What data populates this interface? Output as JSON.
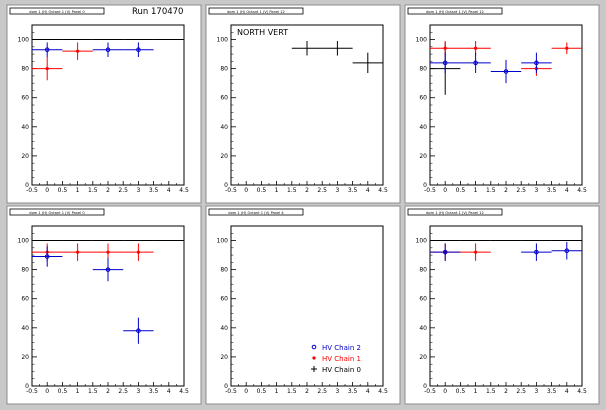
{
  "run_label": "Run 170470",
  "colors": {
    "chain0": "#000000",
    "chain1": "#ff0000",
    "chain2": "#0000cc"
  },
  "legend": [
    {
      "key": "chain2",
      "label": "HV Chain 2",
      "marker": "circle"
    },
    {
      "key": "chain1",
      "label": "HV Chain 1",
      "marker": "star"
    },
    {
      "key": "chain0",
      "label": "HV Chain 0",
      "marker": "cross"
    }
  ],
  "chart_data": [
    {
      "type": "scatter",
      "title": "dom 1 (H) Octant 1 (V) Panel 0",
      "xlim": [
        -0.5,
        4.5
      ],
      "ylim": [
        0,
        110
      ],
      "x_ticks": [
        "-0.5",
        "0",
        "0.5",
        "1",
        "1.5",
        "2",
        "2.5",
        "3",
        "3.5",
        "4",
        "4.5"
      ],
      "y_ticks": [
        "0",
        "20",
        "40",
        "60",
        "80",
        "100"
      ],
      "series": [
        {
          "key": "chain0",
          "points": [
            {
              "x": 0,
              "y": 100,
              "ex": 0.5,
              "ey": 0
            },
            {
              "x": 1,
              "y": 100,
              "ex": 0.5,
              "ey": 0
            },
            {
              "x": 2,
              "y": 100,
              "ex": 0.5,
              "ey": 0
            },
            {
              "x": 3,
              "y": 100,
              "ex": 0.5,
              "ey": 0
            },
            {
              "x": 4,
              "y": 100,
              "ex": 0.5,
              "ey": 0
            }
          ]
        },
        {
          "key": "chain1",
          "points": [
            {
              "x": 0,
              "y": 80,
              "ex": 0.5,
              "ey": 8
            },
            {
              "x": 1,
              "y": 92,
              "ex": 0.5,
              "ey": 6
            }
          ]
        },
        {
          "key": "chain2",
          "points": [
            {
              "x": 0,
              "y": 93,
              "ex": 0.5,
              "ey": 5
            },
            {
              "x": 2,
              "y": 93,
              "ex": 0.5,
              "ey": 5
            },
            {
              "x": 3,
              "y": 93,
              "ex": 0.5,
              "ey": 5
            }
          ]
        }
      ]
    },
    {
      "type": "scatter",
      "title": "dom 1 (H) Octant 1 (V) Panel 12",
      "annotation": "NORTH VERT",
      "xlim": [
        -0.5,
        4.5
      ],
      "ylim": [
        0,
        110
      ],
      "x_ticks": [
        "-0.5",
        "0",
        "0.5",
        "1",
        "1.5",
        "2",
        "2.5",
        "3",
        "3.5",
        "4",
        "4.5"
      ],
      "y_ticks": [
        "0",
        "20",
        "40",
        "60",
        "80",
        "100"
      ],
      "series": [
        {
          "key": "chain0",
          "points": [
            {
              "x": 2,
              "y": 94,
              "ex": 0.5,
              "ey": 5
            },
            {
              "x": 3,
              "y": 94,
              "ex": 0.5,
              "ey": 5
            },
            {
              "x": 4,
              "y": 84,
              "ex": 0.5,
              "ey": 7
            }
          ]
        }
      ]
    },
    {
      "type": "scatter",
      "title": "dom 1 (H) Octant 1 (V) Panel 12",
      "xlim": [
        -0.5,
        4.5
      ],
      "ylim": [
        0,
        110
      ],
      "x_ticks": [
        "-0.5",
        "0",
        "0.5",
        "1",
        "1.5",
        "2",
        "2.5",
        "3",
        "3.5",
        "4",
        "4.5"
      ],
      "y_ticks": [
        "0",
        "20",
        "40",
        "60",
        "80",
        "100"
      ],
      "series": [
        {
          "key": "chain0",
          "points": [
            {
              "x": 0,
              "y": 80,
              "ex": 0.5,
              "ey": 18
            }
          ]
        },
        {
          "key": "chain1",
          "points": [
            {
              "x": 0,
              "y": 94,
              "ex": 0.5,
              "ey": 5
            },
            {
              "x": 1,
              "y": 94,
              "ex": 0.5,
              "ey": 5
            },
            {
              "x": 3,
              "y": 80,
              "ex": 0.5,
              "ey": 5
            },
            {
              "x": 4,
              "y": 94,
              "ex": 0.5,
              "ey": 4
            }
          ]
        },
        {
          "key": "chain2",
          "points": [
            {
              "x": 0,
              "y": 84,
              "ex": 0.5,
              "ey": 7
            },
            {
              "x": 1,
              "y": 84,
              "ex": 0.5,
              "ey": 7
            },
            {
              "x": 2,
              "y": 78,
              "ex": 0.5,
              "ey": 8
            },
            {
              "x": 3,
              "y": 84,
              "ex": 0.5,
              "ey": 7
            }
          ]
        }
      ]
    },
    {
      "type": "scatter",
      "title": "dom 1 (H) Octant 1 (V) Panel 0",
      "xlim": [
        -0.5,
        4.5
      ],
      "ylim": [
        0,
        110
      ],
      "x_ticks": [
        "-0.5",
        "0",
        "0.5",
        "1",
        "1.5",
        "2",
        "2.5",
        "3",
        "3.5",
        "4",
        "4.5"
      ],
      "y_ticks": [
        "0",
        "20",
        "40",
        "60",
        "80",
        "100"
      ],
      "series": [
        {
          "key": "chain0",
          "points": [
            {
              "x": 0,
              "y": 100,
              "ex": 0.5,
              "ey": 0
            },
            {
              "x": 1,
              "y": 100,
              "ex": 0.5,
              "ey": 0
            },
            {
              "x": 2,
              "y": 100,
              "ex": 0.5,
              "ey": 0
            },
            {
              "x": 3,
              "y": 100,
              "ex": 0.5,
              "ey": 0
            },
            {
              "x": 4,
              "y": 100,
              "ex": 0.5,
              "ey": 0
            }
          ]
        },
        {
          "key": "chain1",
          "points": [
            {
              "x": 0,
              "y": 92,
              "ex": 0.5,
              "ey": 6
            },
            {
              "x": 1,
              "y": 92,
              "ex": 0.5,
              "ey": 6
            },
            {
              "x": 2,
              "y": 92,
              "ex": 0.5,
              "ey": 6
            },
            {
              "x": 3,
              "y": 92,
              "ex": 0.5,
              "ey": 6
            }
          ]
        },
        {
          "key": "chain2",
          "points": [
            {
              "x": 0,
              "y": 89,
              "ex": 0.5,
              "ey": 7
            },
            {
              "x": 2,
              "y": 80,
              "ex": 0.5,
              "ey": 8
            },
            {
              "x": 3,
              "y": 38,
              "ex": 0.5,
              "ey": 9
            }
          ]
        }
      ]
    },
    {
      "type": "scatter",
      "title": "dom 1 (H) Octant 1 (V) Panel 4",
      "xlim": [
        -0.5,
        4.5
      ],
      "ylim": [
        0,
        110
      ],
      "x_ticks": [
        "-0.5",
        "0",
        "0.5",
        "1",
        "1.5",
        "2",
        "2.5",
        "3",
        "3.5",
        "4",
        "4.5"
      ],
      "y_ticks": [
        "0",
        "20",
        "40",
        "60",
        "80",
        "100"
      ],
      "show_legend": true,
      "series": []
    },
    {
      "type": "scatter",
      "title": "dom 1 (H) Octant 1 (V) Panel 12",
      "xlim": [
        -0.5,
        4.5
      ],
      "ylim": [
        0,
        110
      ],
      "x_ticks": [
        "-0.5",
        "0",
        "0.5",
        "1",
        "1.5",
        "2",
        "2.5",
        "3",
        "3.5",
        "4",
        "4.5"
      ],
      "y_ticks": [
        "0",
        "20",
        "40",
        "60",
        "80",
        "100"
      ],
      "series": [
        {
          "key": "chain0",
          "points": [
            {
              "x": 0,
              "y": 100,
              "ex": 0.5,
              "ey": 0
            },
            {
              "x": 1,
              "y": 100,
              "ex": 0.5,
              "ey": 0
            },
            {
              "x": 2,
              "y": 100,
              "ex": 0.5,
              "ey": 0
            },
            {
              "x": 3,
              "y": 100,
              "ex": 0.5,
              "ey": 0
            },
            {
              "x": 4,
              "y": 100,
              "ex": 0.5,
              "ey": 0
            }
          ]
        },
        {
          "key": "chain1",
          "points": [
            {
              "x": 0,
              "y": 92,
              "ex": 0.5,
              "ey": 6
            },
            {
              "x": 1,
              "y": 92,
              "ex": 0.5,
              "ey": 6
            }
          ]
        },
        {
          "key": "chain2",
          "points": [
            {
              "x": 0,
              "y": 92,
              "ex": 0.5,
              "ey": 6
            },
            {
              "x": 3,
              "y": 92,
              "ex": 0.5,
              "ey": 6
            },
            {
              "x": 4,
              "y": 93,
              "ex": 0.5,
              "ey": 6
            }
          ]
        }
      ]
    }
  ]
}
